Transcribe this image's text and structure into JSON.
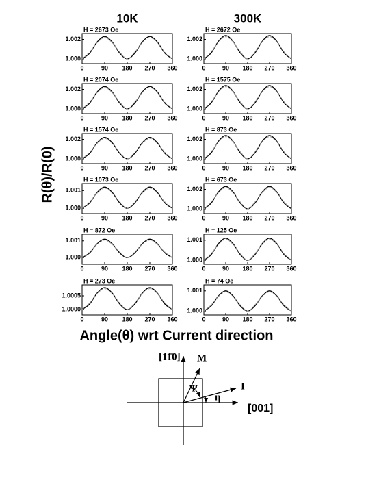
{
  "column_titles": [
    "10K",
    "300K"
  ],
  "y_label": "R(θ)/R(0)",
  "x_label": "Angle(θ) wrt Current direction",
  "diagram": {
    "vertical_axis": "[11̄0]",
    "horizontal_axis": "[001]",
    "magnetization": "M",
    "current": "I",
    "psi": "Ψ",
    "eta": "η"
  },
  "chart_data": [
    {
      "type": "line",
      "title": "H = 2673 Oe",
      "x": [
        0,
        30,
        60,
        90,
        120,
        150,
        180,
        210,
        240,
        270,
        300,
        330,
        360
      ],
      "xlim": [
        0,
        360
      ],
      "xticks": [
        0,
        90,
        180,
        270,
        360
      ],
      "ylim": [
        0.9995,
        1.0026
      ],
      "yticks": [
        {
          "value": 1,
          "label": "1.000"
        },
        1.002
      ],
      "series": [
        {
          "color": "#000000",
          "values": [
            1,
            1.00058,
            1.00173,
            1.0023,
            1.00173,
            1.00058,
            1,
            1.00058,
            1.00173,
            1.0023,
            1.00173,
            1.00058,
            1
          ]
        },
        {
          "color": "#999999",
          "values": [
            1,
            1.00069,
            1.00166,
            1.00219,
            1.00166,
            1.00069,
            1,
            1.00069,
            1.00166,
            1.00219,
            1.00166,
            1.00069,
            1
          ]
        }
      ]
    },
    {
      "type": "line",
      "title": "H = 2672 Oe",
      "x": [
        0,
        30,
        60,
        90,
        120,
        150,
        180,
        210,
        240,
        270,
        300,
        330,
        360
      ],
      "xlim": [
        0,
        360
      ],
      "xticks": [
        0,
        90,
        180,
        270,
        360
      ],
      "ylim": [
        0.9995,
        1.0026
      ],
      "yticks": [
        {
          "value": 1,
          "label": "1.000"
        },
        1.002
      ],
      "series": [
        {
          "color": "#000000",
          "values": [
            1,
            1.0006,
            1.0018,
            1.0024,
            1.0018,
            1.0006,
            1,
            1.0006,
            1.0018,
            1.0024,
            1.0018,
            1.0006,
            1
          ]
        },
        {
          "color": "#999999",
          "values": [
            1,
            1.00072,
            1.00173,
            1.00228,
            1.00173,
            1.00072,
            1,
            1.00072,
            1.00173,
            1.00228,
            1.00173,
            1.00072,
            1
          ]
        }
      ]
    },
    {
      "type": "line",
      "title": "H = 2074 Oe",
      "x": [
        0,
        30,
        60,
        90,
        120,
        150,
        180,
        210,
        240,
        270,
        300,
        330,
        360
      ],
      "xlim": [
        0,
        360
      ],
      "xticks": [
        0,
        90,
        180,
        270,
        360
      ],
      "ylim": [
        0.9995,
        1.0026
      ],
      "yticks": [
        {
          "value": 1,
          "label": "1.000"
        },
        1.002
      ],
      "series": [
        {
          "color": "#000000",
          "values": [
            1,
            1.00058,
            1.00173,
            1.0023,
            1.00173,
            1.00058,
            1,
            1.00058,
            1.00173,
            1.0023,
            1.00173,
            1.00058,
            1
          ]
        },
        {
          "color": "#999999",
          "values": [
            1,
            1.00069,
            1.00166,
            1.00219,
            1.00166,
            1.00069,
            1,
            1.00069,
            1.00166,
            1.00219,
            1.00166,
            1.00069,
            1
          ]
        }
      ]
    },
    {
      "type": "line",
      "title": "H = 1575 Oe",
      "x": [
        0,
        30,
        60,
        90,
        120,
        150,
        180,
        210,
        240,
        270,
        300,
        330,
        360
      ],
      "xlim": [
        0,
        360
      ],
      "xticks": [
        0,
        90,
        180,
        270,
        360
      ],
      "ylim": [
        0.9995,
        1.0026
      ],
      "yticks": [
        {
          "value": 1,
          "label": "1.000"
        },
        1.002
      ],
      "series": [
        {
          "color": "#000000",
          "values": [
            1,
            1.0006,
            1.0018,
            1.0024,
            1.0018,
            1.0006,
            1,
            1.0006,
            1.0018,
            1.0024,
            1.0018,
            1.0006,
            1
          ]
        },
        {
          "color": "#999999",
          "values": [
            1,
            1.00072,
            1.00173,
            1.00228,
            1.00173,
            1.00072,
            1,
            1.00072,
            1.00173,
            1.00228,
            1.00173,
            1.00072,
            1
          ]
        }
      ]
    },
    {
      "type": "line",
      "title": "H = 1574 Oe",
      "x": [
        0,
        30,
        60,
        90,
        120,
        150,
        180,
        210,
        240,
        270,
        300,
        330,
        360
      ],
      "xlim": [
        0,
        360
      ],
      "xticks": [
        0,
        90,
        180,
        270,
        360
      ],
      "ylim": [
        0.9995,
        1.0026
      ],
      "yticks": [
        {
          "value": 1,
          "label": "1.000"
        },
        1.002
      ],
      "series": [
        {
          "color": "#000000",
          "values": [
            1,
            1.00055,
            1.00165,
            1.0022,
            1.00165,
            1.00055,
            1,
            1.00055,
            1.00165,
            1.0022,
            1.00165,
            1.00055,
            1
          ]
        },
        {
          "color": "#999999",
          "values": [
            1,
            1.00066,
            1.00158,
            1.00209,
            1.00158,
            1.00066,
            1,
            1.00066,
            1.00158,
            1.00209,
            1.00158,
            1.00066,
            1
          ]
        }
      ]
    },
    {
      "type": "line",
      "title": "H = 873 Oe",
      "x": [
        0,
        30,
        60,
        90,
        120,
        150,
        180,
        210,
        240,
        270,
        300,
        330,
        360
      ],
      "xlim": [
        0,
        360
      ],
      "xticks": [
        0,
        90,
        180,
        270,
        360
      ],
      "ylim": [
        0.9995,
        1.0026
      ],
      "yticks": [
        {
          "value": 1,
          "label": "1.000"
        },
        1.002
      ],
      "series": [
        {
          "color": "#000000",
          "values": [
            1,
            1.0006,
            1.0018,
            1.0024,
            1.0018,
            1.0006,
            1,
            1.0006,
            1.0018,
            1.0024,
            1.0018,
            1.0006,
            1
          ]
        },
        {
          "color": "#999999",
          "values": [
            1,
            1.00072,
            1.00173,
            1.00228,
            1.00173,
            1.00072,
            1,
            1.00072,
            1.00173,
            1.00228,
            1.00173,
            1.00072,
            1
          ]
        }
      ]
    },
    {
      "type": "line",
      "title": "H = 1073 Oe",
      "x": [
        0,
        30,
        60,
        90,
        120,
        150,
        180,
        210,
        240,
        270,
        300,
        330,
        360
      ],
      "xlim": [
        0,
        360
      ],
      "xticks": [
        0,
        90,
        180,
        270,
        360
      ],
      "ylim": [
        0.9997,
        1.0014
      ],
      "yticks": [
        {
          "value": 1,
          "label": "1.000"
        },
        1.001
      ],
      "series": [
        {
          "color": "#000000",
          "values": [
            1,
            1.0003,
            1.0009,
            1.0012,
            1.0009,
            1.0003,
            1,
            1.0003,
            1.0009,
            1.0012,
            1.0009,
            1.0003,
            1
          ]
        },
        {
          "color": "#999999",
          "values": [
            1,
            1.00036,
            1.00086,
            1.00114,
            1.00086,
            1.00036,
            1,
            1.00036,
            1.00086,
            1.00114,
            1.00086,
            1.00036,
            1
          ]
        }
      ]
    },
    {
      "type": "line",
      "title": "H = 673 Oe",
      "x": [
        0,
        30,
        60,
        90,
        120,
        150,
        180,
        210,
        240,
        270,
        300,
        330,
        360
      ],
      "xlim": [
        0,
        360
      ],
      "xticks": [
        0,
        90,
        180,
        270,
        360
      ],
      "ylim": [
        0.9995,
        1.0026
      ],
      "yticks": [
        {
          "value": 1,
          "label": "1.000"
        },
        1.002
      ],
      "series": [
        {
          "color": "#000000",
          "values": [
            1,
            1.00058,
            1.00173,
            1.0023,
            1.00173,
            1.00058,
            1,
            1.00058,
            1.00173,
            1.0023,
            1.00173,
            1.00058,
            1
          ]
        },
        {
          "color": "#999999",
          "values": [
            1,
            1.00069,
            1.00166,
            1.00219,
            1.00166,
            1.00069,
            1,
            1.00069,
            1.00166,
            1.00219,
            1.00166,
            1.00069,
            1
          ]
        }
      ]
    },
    {
      "type": "line",
      "title": "H = 872 Oe",
      "x": [
        0,
        30,
        60,
        90,
        120,
        150,
        180,
        210,
        240,
        270,
        300,
        330,
        360
      ],
      "xlim": [
        0,
        360
      ],
      "xticks": [
        0,
        90,
        180,
        270,
        360
      ],
      "ylim": [
        0.9996,
        1.0014
      ],
      "yticks": [
        {
          "value": 1,
          "label": "1.000"
        },
        1.001
      ],
      "series": [
        {
          "color": "#000000",
          "values": [
            1,
            1.00028,
            1.00083,
            1.0011,
            1.00083,
            1.00028,
            1,
            1.00028,
            1.00083,
            1.0011,
            1.00083,
            1.00028,
            1
          ]
        },
        {
          "color": "#999999",
          "values": [
            1,
            1.00033,
            1.00079,
            1.00105,
            1.00079,
            1.00033,
            1,
            1.00033,
            1.00079,
            1.00105,
            1.00079,
            1.00033,
            1
          ]
        }
      ]
    },
    {
      "type": "line",
      "title": "H = 125 Oe",
      "x": [
        0,
        30,
        60,
        90,
        120,
        150,
        180,
        210,
        240,
        270,
        300,
        330,
        360
      ],
      "xlim": [
        0,
        360
      ],
      "xticks": [
        0,
        90,
        180,
        270,
        360
      ],
      "ylim": [
        0.9998,
        1.0013
      ],
      "yticks": [
        {
          "value": 1,
          "label": "1.000"
        },
        1.001
      ],
      "series": [
        {
          "color": "#000000",
          "values": [
            1,
            1.00028,
            1.00083,
            1.0011,
            1.00083,
            1.00028,
            1,
            1.00028,
            1.00083,
            1.0011,
            1.00083,
            1.00028,
            1
          ]
        },
        {
          "color": "#999999",
          "values": [
            1,
            1.00033,
            1.00079,
            1.00105,
            1.00079,
            1.00033,
            1,
            1.00033,
            1.00079,
            1.00105,
            1.00079,
            1.00033,
            1
          ]
        }
      ]
    },
    {
      "type": "line",
      "title": "H = 273 Oe",
      "x": [
        0,
        30,
        60,
        90,
        120,
        150,
        180,
        210,
        240,
        270,
        300,
        330,
        360
      ],
      "xlim": [
        0,
        360
      ],
      "xticks": [
        0,
        90,
        180,
        270,
        360
      ],
      "ylim": [
        0.9998,
        1.0009
      ],
      "yticks": [
        {
          "value": 1,
          "label": "1.0000"
        },
        1.0005
      ],
      "series": [
        {
          "color": "#000000",
          "values": [
            1,
            1.0002,
            1.0006,
            1.0008,
            1.0006,
            1.0002,
            1,
            1.0002,
            1.0006,
            1.0008,
            1.0006,
            1.0002,
            1
          ]
        },
        {
          "color": "#999999",
          "values": [
            1,
            1.00024,
            1.00058,
            1.00076,
            1.00058,
            1.00024,
            1,
            1.00024,
            1.00058,
            1.00076,
            1.00058,
            1.00024,
            1
          ]
        }
      ]
    },
    {
      "type": "line",
      "title": "H = 74 Oe",
      "x": [
        0,
        30,
        60,
        90,
        120,
        150,
        180,
        210,
        240,
        270,
        300,
        330,
        360
      ],
      "xlim": [
        0,
        360
      ],
      "xticks": [
        0,
        90,
        180,
        270,
        360
      ],
      "ylim": [
        0.9998,
        1.0013
      ],
      "yticks": [
        {
          "value": 1,
          "label": "1.000"
        },
        1.001
      ],
      "series": [
        {
          "color": "#000000",
          "values": [
            1,
            1.00025,
            1.00075,
            1.001,
            1.00075,
            1.00025,
            1,
            1.00025,
            1.00075,
            1.001,
            1.00075,
            1.00025,
            1
          ]
        },
        {
          "color": "#999999",
          "values": [
            1,
            1.0003,
            1.00072,
            1.00095,
            1.00072,
            1.0003,
            1,
            1.0003,
            1.00072,
            1.00095,
            1.00072,
            1.0003,
            1
          ]
        }
      ]
    }
  ]
}
